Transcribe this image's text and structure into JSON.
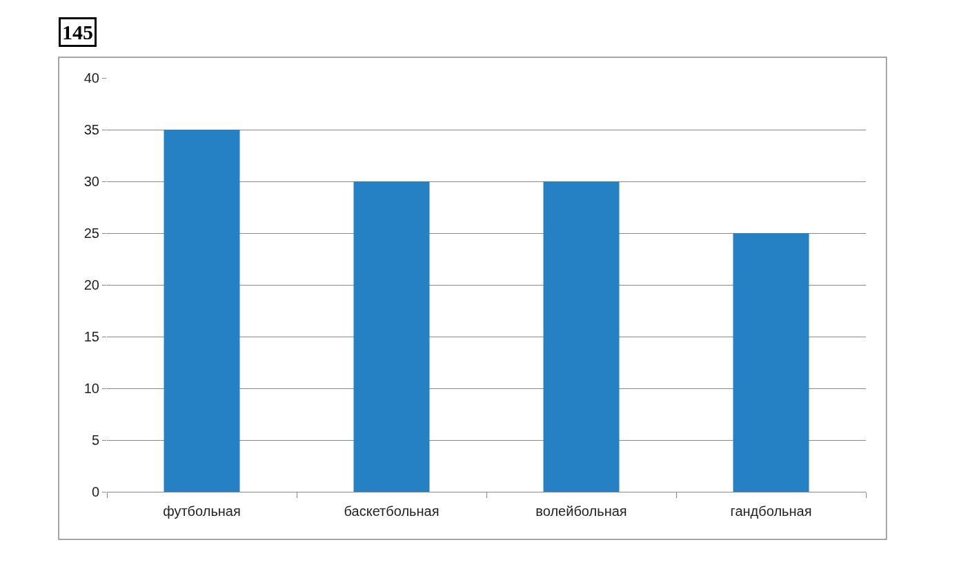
{
  "chart_data": {
    "type": "bar",
    "annotations": [
      "145"
    ],
    "categories": [
      "футбольная",
      "баскетбольная",
      "волейбольная",
      "гандбольная"
    ],
    "values": [
      35,
      30,
      30,
      25
    ],
    "color": "#2581c4",
    "ylim": [
      0,
      40
    ],
    "yticks": [
      0,
      5,
      10,
      15,
      20,
      25,
      30,
      35,
      40
    ],
    "grid": "y",
    "legend": false
  }
}
